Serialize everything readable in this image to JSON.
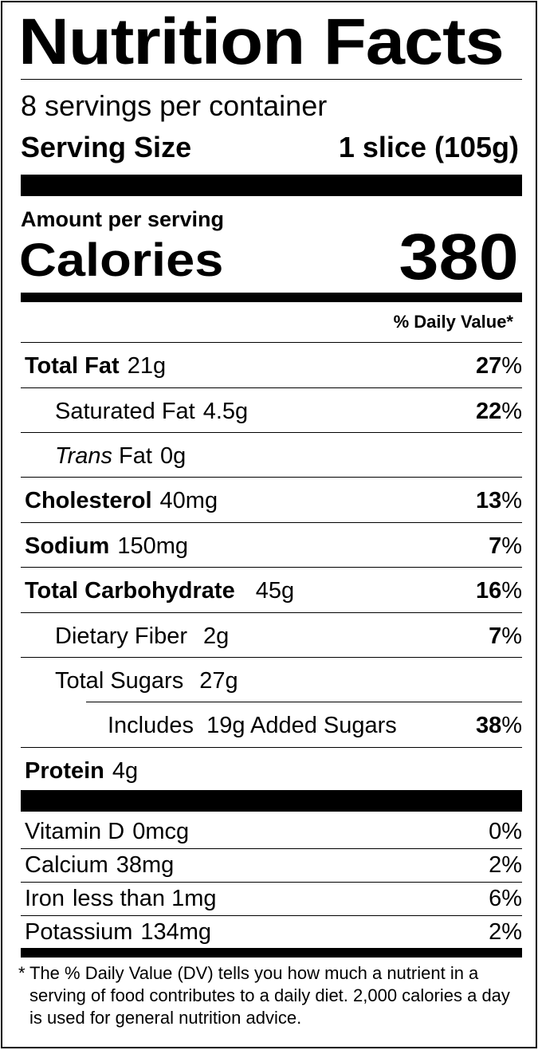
{
  "title": "Nutrition Facts",
  "servings_per_container": "8 servings per container",
  "serving_size_label": "Serving Size",
  "serving_size_value": "1 slice (105g)",
  "amount_per_serving": "Amount per serving",
  "calories_label": "Calories",
  "calories_value": "380",
  "daily_value_header": "% Daily Value*",
  "nutrients": {
    "total_fat": {
      "label": "Total Fat",
      "amount": "21g",
      "pct_num": "27",
      "pct_sign": "%"
    },
    "saturated_fat": {
      "label": "Saturated Fat",
      "amount": "4.5g",
      "pct_num": "22",
      "pct_sign": "%"
    },
    "trans_fat": {
      "label_italic": "Trans",
      "label_rest": "Fat",
      "amount": "0g"
    },
    "cholesterol": {
      "label": "Cholesterol",
      "amount": "40mg",
      "pct_num": "13",
      "pct_sign": "%"
    },
    "sodium": {
      "label": "Sodium",
      "amount": "150mg",
      "pct_num": "7",
      "pct_sign": "%"
    },
    "total_carbohydrate": {
      "label": "Total Carbohydrate",
      "amount": "45g",
      "pct_num": "16",
      "pct_sign": "%"
    },
    "dietary_fiber": {
      "label": "Dietary Fiber",
      "amount": "2g",
      "pct_num": "7",
      "pct_sign": "%"
    },
    "total_sugars": {
      "label": "Total Sugars",
      "amount": "27g"
    },
    "added_sugars": {
      "label": "Includes  19g Added Sugars",
      "pct_num": "38",
      "pct_sign": "%"
    },
    "protein": {
      "label": "Protein",
      "amount": "4g"
    }
  },
  "vitamins": [
    {
      "label": "Vitamin D",
      "amount": "0mcg",
      "pct": "0%"
    },
    {
      "label": "Calcium",
      "amount": "38mg",
      "pct": "2%"
    },
    {
      "label": "Iron",
      "amount": "less than 1mg",
      "pct": "6%"
    },
    {
      "label": "Potassium",
      "amount": "134mg",
      "pct": "2%"
    }
  ],
  "footnote_star": "*",
  "footnote_text": "The % Daily Value (DV) tells you how much a nutrient in a serving of food contributes to a daily diet. 2,000 calories a day is used for general nutrition advice."
}
